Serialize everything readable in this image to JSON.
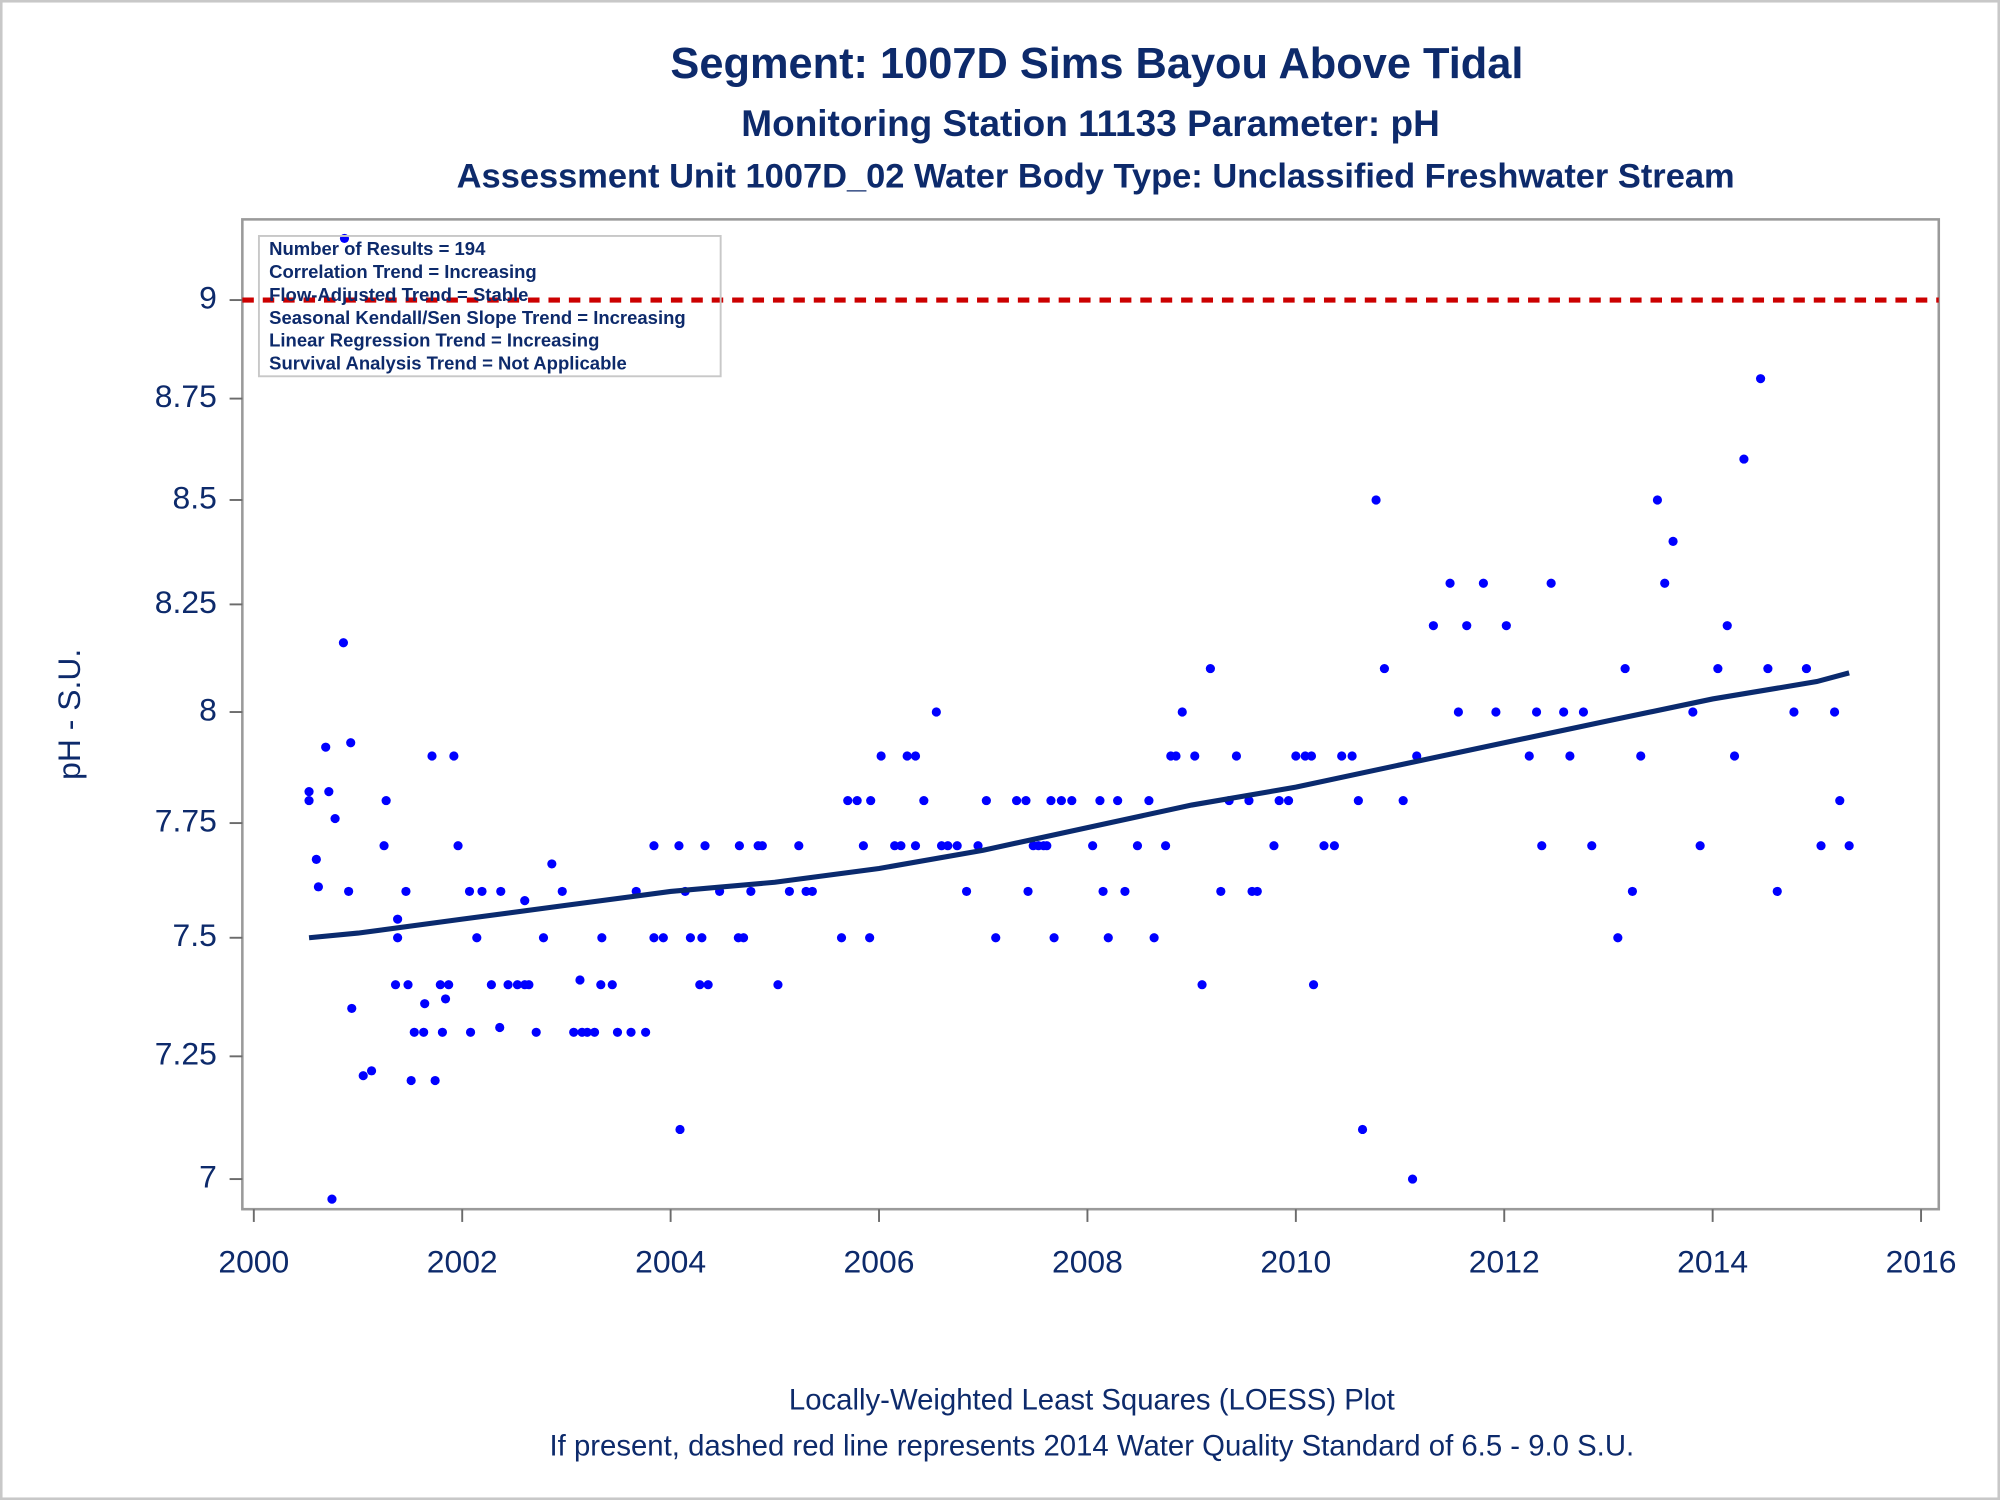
{
  "chart_data": {
    "type": "scatter",
    "title": "Segment: 1007D  Sims Bayou Above Tidal",
    "subtitle": "Monitoring Station 11133 Parameter: pH",
    "subtitle2": "Assessment Unit 1007D_02   Water Body Type: Unclassified Freshwater Stream",
    "y_label": "pH - S.U.",
    "footnotes": [
      "Locally-Weighted Least Squares (LOESS) Plot",
      "If present, dashed red line represents 2014 Water Quality Standard of 6.5 - 9.0 S.U."
    ],
    "annotations": [
      "Number of Results = 194",
      "Correlation Trend = Increasing",
      "Flow-Adjusted Trend = Stable",
      "Seasonal Kendall/Sen Slope Trend = Increasing",
      "Linear Regression Trend = Increasing",
      "Survival Analysis Trend = Not Applicable"
    ],
    "xlim": [
      1999.89,
      2016.17
    ],
    "xticks": [
      2000,
      2002,
      2004,
      2006,
      2008,
      2010,
      2012,
      2014,
      2016
    ],
    "ylim": [
      6.94,
      9.21
    ],
    "yticks": [
      7,
      7.25,
      7.5,
      7.75,
      8,
      8.25,
      8.5,
      8.75,
      9
    ],
    "yscale": "log",
    "grid": false,
    "reference_lines": [
      {
        "value": 9,
        "color": "#cc0000",
        "style": "dashed"
      }
    ],
    "series": [
      {
        "type": "scatter",
        "color": "#0000ff",
        "x": [
          2000.53,
          2000.53,
          2000.6,
          2000.62,
          2000.69,
          2000.72,
          2000.75,
          2000.78,
          2000.86,
          2000.87,
          2000.91,
          2000.93,
          2000.94,
          2001.05,
          2001.13,
          2001.25,
          2001.27,
          2001.36,
          2001.38,
          2001.38,
          2001.46,
          2001.48,
          2001.51,
          2001.54,
          2001.63,
          2001.64,
          2001.71,
          2001.74,
          2001.79,
          2001.81,
          2001.84,
          2001.87,
          2001.92,
          2001.96,
          2002.07,
          2002.08,
          2002.14,
          2002.19,
          2002.28,
          2002.36,
          2002.37,
          2002.44,
          2002.53,
          2002.6,
          2002.6,
          2002.64,
          2002.71,
          2002.78,
          2002.86,
          2002.96,
          2003.07,
          2003.13,
          2003.15,
          2003.2,
          2003.27,
          2003.34,
          2003.33,
          2003.44,
          2003.49,
          2003.62,
          2003.67,
          2003.76,
          2003.84,
          2003.84,
          2003.93,
          2004.08,
          2004.09,
          2004.14,
          2004.19,
          2004.3,
          2004.28,
          2004.33,
          2004.36,
          2004.47,
          2004.65,
          2004.66,
          2004.7,
          2004.77,
          2004.84,
          2004.88,
          2005.03,
          2005.14,
          2005.23,
          2005.3,
          2005.36,
          2005.64,
          2005.7,
          2005.79,
          2005.85,
          2005.91,
          2005.92,
          2006.02,
          2006.15,
          2006.21,
          2006.27,
          2006.35,
          2006.35,
          2006.43,
          2006.55,
          2006.6,
          2006.66,
          2006.75,
          2006.84,
          2006.95,
          2007.03,
          2007.12,
          2007.32,
          2007.41,
          2007.43,
          2007.48,
          2007.53,
          2007.58,
          2007.61,
          2007.65,
          2007.68,
          2007.75,
          2007.85,
          2008.05,
          2008.12,
          2008.15,
          2008.2,
          2008.29,
          2008.36,
          2008.48,
          2008.59,
          2008.64,
          2008.75,
          2008.8,
          2008.85,
          2008.91,
          2009.03,
          2009.1,
          2009.18,
          2009.28,
          2009.36,
          2009.43,
          2009.55,
          2009.58,
          2009.63,
          2009.79,
          2009.84,
          2009.93,
          2010.0,
          2010.09,
          2010.15,
          2010.17,
          2010.27,
          2010.37,
          2010.44,
          2010.54,
          2010.6,
          2010.64,
          2010.77,
          2010.85,
          2011.03,
          2011.12,
          2011.16,
          2011.32,
          2011.48,
          2011.56,
          2011.64,
          2011.8,
          2011.92,
          2012.02,
          2012.24,
          2012.31,
          2012.36,
          2012.45,
          2012.57,
          2012.63,
          2012.76,
          2012.84,
          2013.09,
          2013.16,
          2013.23,
          2013.31,
          2013.47,
          2013.54,
          2013.62,
          2013.81,
          2013.88,
          2014.05,
          2014.14,
          2014.21,
          2014.3,
          2014.46,
          2014.53,
          2014.62,
          2014.78,
          2014.9,
          2015.04,
          2015.17,
          2015.22,
          2015.31
        ],
        "values": [
          7.8,
          7.82,
          7.67,
          7.61,
          7.92,
          7.82,
          6.96,
          7.76,
          8.16,
          9.16,
          7.6,
          7.93,
          7.35,
          7.21,
          7.22,
          7.7,
          7.8,
          7.4,
          7.54,
          7.5,
          7.6,
          7.4,
          7.2,
          7.3,
          7.3,
          7.36,
          7.9,
          7.2,
          7.4,
          7.3,
          7.37,
          7.4,
          7.9,
          7.7,
          7.6,
          7.3,
          7.5,
          7.6,
          7.4,
          7.31,
          7.6,
          7.4,
          7.4,
          7.58,
          7.4,
          7.4,
          7.3,
          7.5,
          7.66,
          7.6,
          7.3,
          7.41,
          7.3,
          7.3,
          7.3,
          7.5,
          7.4,
          7.4,
          7.3,
          7.3,
          7.6,
          7.3,
          7.7,
          7.5,
          7.5,
          7.7,
          7.1,
          7.6,
          7.5,
          7.5,
          7.4,
          7.7,
          7.4,
          7.6,
          7.5,
          7.7,
          7.5,
          7.6,
          7.7,
          7.7,
          7.4,
          7.6,
          7.7,
          7.6,
          7.6,
          7.5,
          7.8,
          7.8,
          7.7,
          7.5,
          7.8,
          7.9,
          7.7,
          7.7,
          7.9,
          7.7,
          7.9,
          7.8,
          8.0,
          7.7,
          7.7,
          7.7,
          7.6,
          7.7,
          7.8,
          7.5,
          7.8,
          7.8,
          7.6,
          7.7,
          7.7,
          7.7,
          7.7,
          7.8,
          7.5,
          7.8,
          7.8,
          7.7,
          7.8,
          7.6,
          7.5,
          7.8,
          7.6,
          7.7,
          7.8,
          7.5,
          7.7,
          7.9,
          7.9,
          8.0,
          7.9,
          7.4,
          8.1,
          7.6,
          7.8,
          7.9,
          7.8,
          7.6,
          7.6,
          7.7,
          7.8,
          7.8,
          7.9,
          7.9,
          7.9,
          7.4,
          7.7,
          7.7,
          7.9,
          7.9,
          7.8,
          7.1,
          8.5,
          8.1,
          7.8,
          7.0,
          7.9,
          8.2,
          8.3,
          8.0,
          8.2,
          8.3,
          8.0,
          8.2,
          7.9,
          8.0,
          7.7,
          8.3,
          8.0,
          7.9,
          8.0,
          7.7,
          7.5,
          8.1,
          7.6,
          7.9,
          8.5,
          8.3,
          8.4,
          8.0,
          7.7,
          8.1,
          8.2,
          7.9,
          8.6,
          8.8,
          8.1,
          7.6,
          8.0,
          8.1,
          7.7,
          8.0,
          7.8,
          7.7
        ]
      },
      {
        "type": "line",
        "color": "#0a2a6e",
        "x": [
          2000.53,
          2001,
          2002,
          2003,
          2004,
          2005,
          2006,
          2007,
          2008,
          2009,
          2010,
          2011,
          2012,
          2013,
          2014,
          2015,
          2015.31
        ],
        "values": [
          7.5,
          7.51,
          7.54,
          7.57,
          7.6,
          7.62,
          7.65,
          7.69,
          7.74,
          7.79,
          7.83,
          7.88,
          7.93,
          7.98,
          8.03,
          8.07,
          8.09
        ]
      }
    ]
  }
}
